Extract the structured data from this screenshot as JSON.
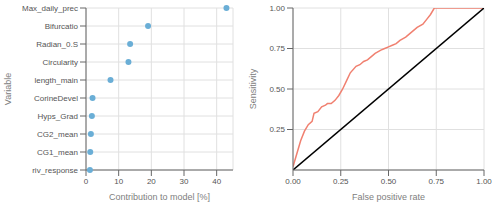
{
  "chart_data": [
    {
      "type": "dot",
      "categories": [
        "Max_daily_prec",
        "Bifurcatio",
        "Radian_0.S",
        "Circularity",
        "length_main",
        "CorineDevel",
        "Hyps_Grad",
        "CG2_mean",
        "CG1_mean",
        "riv_response"
      ],
      "values": [
        43,
        19,
        13.5,
        13,
        7.5,
        2.0,
        1.8,
        1.5,
        1.3,
        1.2
      ],
      "color": "#6aaed6",
      "xlabel": "Contribution to model [%]",
      "ylabel": "Variable",
      "xlim": [
        0,
        45
      ],
      "xticks": [
        0,
        10,
        20,
        30,
        40
      ],
      "grid": true
    },
    {
      "type": "line",
      "series": [
        {
          "color": "#f08070",
          "x": [
            0.0,
            0.02,
            0.04,
            0.06,
            0.08,
            0.1,
            0.11,
            0.13,
            0.15,
            0.17,
            0.18,
            0.2,
            0.22,
            0.24,
            0.26,
            0.28,
            0.3,
            0.33,
            0.35,
            0.37,
            0.39,
            0.41,
            0.43,
            0.46,
            0.48,
            0.5,
            0.52,
            0.54,
            0.56,
            0.59,
            0.61,
            0.63,
            0.65,
            0.68,
            0.7,
            0.72,
            0.74,
            0.76,
            1.0
          ],
          "values": [
            0.02,
            0.1,
            0.18,
            0.24,
            0.28,
            0.3,
            0.35,
            0.36,
            0.39,
            0.4,
            0.41,
            0.41,
            0.43,
            0.46,
            0.5,
            0.55,
            0.6,
            0.64,
            0.65,
            0.67,
            0.68,
            0.7,
            0.72,
            0.74,
            0.75,
            0.76,
            0.77,
            0.78,
            0.8,
            0.82,
            0.84,
            0.86,
            0.88,
            0.9,
            0.93,
            0.96,
            1.0,
            1.0,
            1.0
          ]
        },
        {
          "color": "#000000",
          "x": [
            0,
            1
          ],
          "values": [
            0,
            1
          ]
        }
      ],
      "xlabel": "False positive rate",
      "ylabel": "Sensitivity",
      "xlim": [
        0,
        1
      ],
      "ylim": [
        0,
        1
      ],
      "xticks": [
        {
          "value": 0.0,
          "label": "0.00"
        },
        {
          "value": 0.25,
          "label": "0.25"
        },
        {
          "value": 0.5,
          "label": "0.50"
        },
        {
          "value": 0.75,
          "label": "0.75"
        },
        {
          "value": 1.0,
          "label": "1.00"
        }
      ],
      "yticks": [
        {
          "value": 0.25,
          "label": "0.25"
        },
        {
          "value": 0.5,
          "label": "0.50"
        },
        {
          "value": 0.75,
          "label": "0.75"
        },
        {
          "value": 1.0,
          "label": "1.00"
        }
      ],
      "grid": true
    }
  ]
}
